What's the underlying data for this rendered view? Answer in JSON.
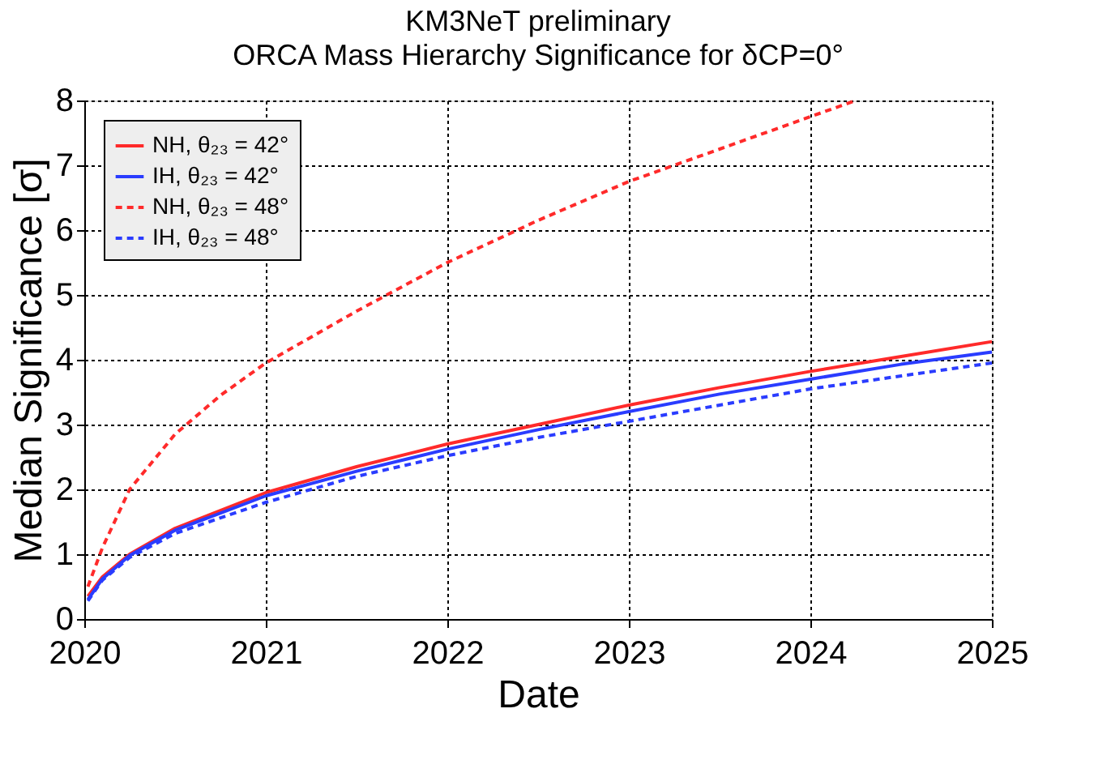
{
  "chart_data": {
    "type": "line",
    "title": "KM3NeT preliminary",
    "subtitle": "ORCA Mass Hierarchy Significance for δCP=0°",
    "xlabel": "Date",
    "ylabel": "Median Significance [σ]",
    "xlim": [
      2020,
      2025
    ],
    "xticks": [
      2020,
      2021,
      2022,
      2023,
      2024,
      2025
    ],
    "ylim": [
      0,
      8
    ],
    "yticks": [
      0,
      1,
      2,
      3,
      4,
      5,
      6,
      7,
      8
    ],
    "grid": true,
    "legend": "top left",
    "series": [
      {
        "name": "NH, θ₂₃ = 42°",
        "color": "#ff2a2a",
        "line_style": "solid",
        "x": [
          2020.02,
          2020.1,
          2020.25,
          2020.5,
          2021,
          2021.5,
          2022,
          2022.5,
          2023,
          2023.5,
          2024,
          2024.5,
          2025
        ],
        "values": [
          0.35,
          0.65,
          1.0,
          1.4,
          1.95,
          2.35,
          2.7,
          3.0,
          3.3,
          3.57,
          3.82,
          4.05,
          4.28
        ]
      },
      {
        "name": "IH,  θ₂₃ = 42°",
        "color": "#2a3cff",
        "line_style": "solid",
        "x": [
          2020.02,
          2020.1,
          2020.25,
          2020.5,
          2021,
          2021.5,
          2022,
          2022.5,
          2023,
          2023.5,
          2024,
          2024.5,
          2025
        ],
        "values": [
          0.3,
          0.62,
          0.98,
          1.37,
          1.9,
          2.28,
          2.62,
          2.92,
          3.2,
          3.47,
          3.7,
          3.93,
          4.12
        ]
      },
      {
        "name": "NH, θ₂₃ = 48°",
        "color": "#ff2a2a",
        "line_style": "dashed",
        "x": [
          2020.02,
          2020.1,
          2020.25,
          2020.5,
          2020.75,
          2021,
          2021.5,
          2022,
          2022.5,
          2023,
          2023.5,
          2024,
          2024.25
        ],
        "values": [
          0.5,
          1.1,
          2.0,
          2.85,
          3.45,
          3.95,
          4.75,
          5.5,
          6.15,
          6.75,
          7.25,
          7.75,
          8.0
        ]
      },
      {
        "name": "IH,  θ₂₃ = 48°",
        "color": "#2a3cff",
        "line_style": "dashed",
        "x": [
          2020.02,
          2020.1,
          2020.25,
          2020.5,
          2021,
          2021.5,
          2022,
          2022.5,
          2023,
          2023.5,
          2024,
          2024.5,
          2025
        ],
        "values": [
          0.28,
          0.6,
          0.95,
          1.32,
          1.8,
          2.2,
          2.52,
          2.8,
          3.05,
          3.3,
          3.55,
          3.75,
          3.95
        ]
      }
    ]
  }
}
